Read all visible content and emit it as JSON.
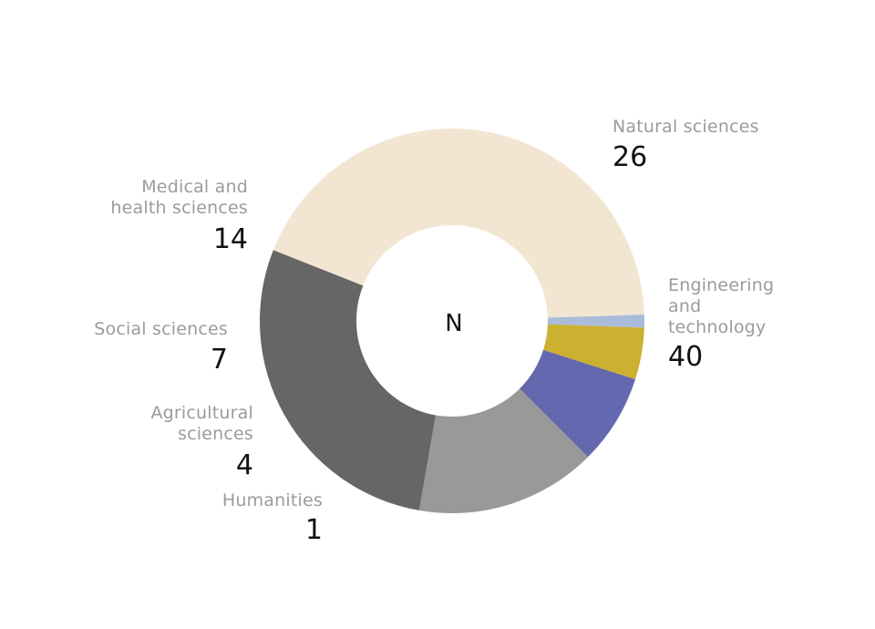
{
  "chart_data": {
    "type": "pie",
    "center_label": "N",
    "slices": [
      {
        "label": "Engineering and technology",
        "value": 40,
        "color": "#f2e6d2"
      },
      {
        "label": "Humanities",
        "value": 1,
        "color": "#a9bcd9"
      },
      {
        "label": "Agricultural sciences",
        "value": 4,
        "color": "#ccb030"
      },
      {
        "label": "Social sciences",
        "value": 7,
        "color": "#6468ae"
      },
      {
        "label": "Medical and health sciences",
        "value": 14,
        "color": "#999999"
      },
      {
        "label": "Natural sciences",
        "value": 26,
        "color": "#666666"
      }
    ],
    "labels": {
      "natural": {
        "name": "Natural sciences",
        "value": "26"
      },
      "engineering": {
        "name_lines": [
          "Engineering",
          "and",
          "technology"
        ],
        "value": "40"
      },
      "medical": {
        "name_lines": [
          "Medical and",
          "health sciences"
        ],
        "value": "14"
      },
      "social": {
        "name": "Social sciences",
        "value": "7"
      },
      "agricultural": {
        "name_lines": [
          "Agricultural",
          "sciences"
        ],
        "value": "4"
      },
      "humanities": {
        "name": "Humanities",
        "value": "1"
      }
    }
  }
}
